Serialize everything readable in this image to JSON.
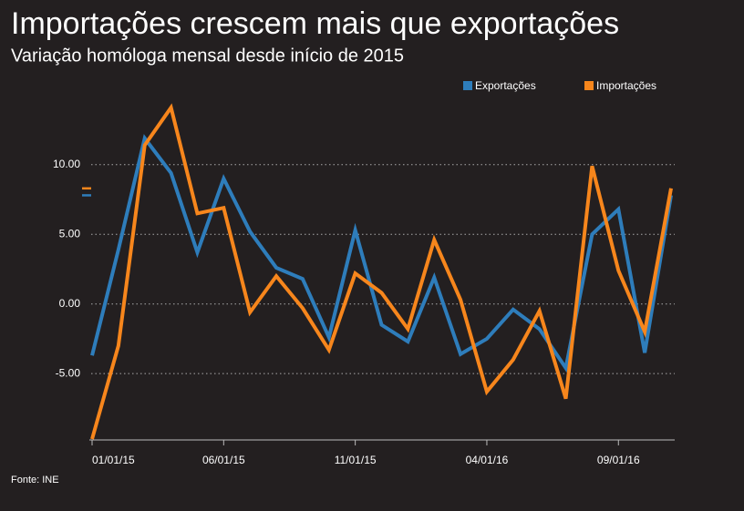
{
  "chart_data": {
    "type": "line",
    "title": "Importações crescem mais que exportações",
    "subtitle": "Variação homóloga mensal desde início de 2015",
    "source": "Fonte: INE",
    "categories": [
      "01/01/15",
      null,
      null,
      null,
      null,
      "06/01/15",
      null,
      null,
      null,
      null,
      "11/01/15",
      null,
      null,
      null,
      null,
      "04/01/16",
      null,
      null,
      null,
      null,
      "09/01/16",
      null,
      null
    ],
    "series": [
      {
        "name": "Exportações",
        "color": "#2e7dbb",
        "values": [
          -3.7,
          3.9,
          11.9,
          9.4,
          3.7,
          9.0,
          5.2,
          2.6,
          1.8,
          -2.4,
          5.3,
          -1.5,
          -2.7,
          1.9,
          -3.6,
          -2.5,
          -0.4,
          -1.8,
          -4.6,
          5.0,
          6.8,
          -3.5,
          7.8
        ]
      },
      {
        "name": "Importações",
        "color": "#f7861c",
        "values": [
          -9.7,
          -3.0,
          11.4,
          14.1,
          6.5,
          6.9,
          -0.6,
          2.0,
          -0.3,
          -3.3,
          2.2,
          0.8,
          -1.8,
          4.6,
          0.3,
          -6.3,
          -4.0,
          -0.5,
          -6.8,
          9.9,
          2.4,
          -2.0,
          8.3
        ]
      }
    ],
    "ylim": [
      -9.7,
      14.5
    ],
    "yticks": [
      {
        "value": -5,
        "label": "-5.00"
      },
      {
        "value": 0,
        "label": "0.00"
      },
      {
        "value": 5,
        "label": "5.00"
      },
      {
        "value": 10,
        "label": "10.00"
      }
    ],
    "grid": true,
    "legend": "top-right"
  }
}
